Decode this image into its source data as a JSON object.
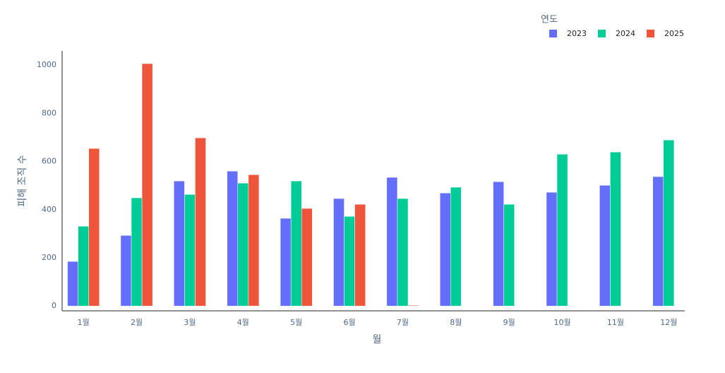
{
  "chart_data": {
    "type": "bar",
    "x_label": "월",
    "y_label": "피해 조직 수",
    "legend_title": "연도",
    "categories": [
      "1월",
      "2월",
      "3월",
      "4월",
      "5월",
      "6월",
      "7월",
      "8월",
      "9월",
      "10월",
      "11월",
      "12월"
    ],
    "series": [
      {
        "name": "2023",
        "color": "#636efa",
        "values": [
          185,
          293,
          519,
          560,
          364,
          446,
          534,
          469,
          516,
          472,
          501,
          537
        ]
      },
      {
        "name": "2024",
        "color": "#00cc96",
        "values": [
          331,
          449,
          463,
          510,
          519,
          372,
          446,
          493,
          422,
          630,
          639,
          689
        ]
      },
      {
        "name": "2025",
        "color": "#ef553b",
        "values": [
          654,
          1006,
          698,
          545,
          405,
          422,
          3,
          null,
          null,
          null,
          null,
          null
        ]
      }
    ],
    "ylim": [
      -20,
      1059
    ],
    "yticks": [
      0,
      200,
      400,
      600,
      800,
      1000
    ]
  }
}
